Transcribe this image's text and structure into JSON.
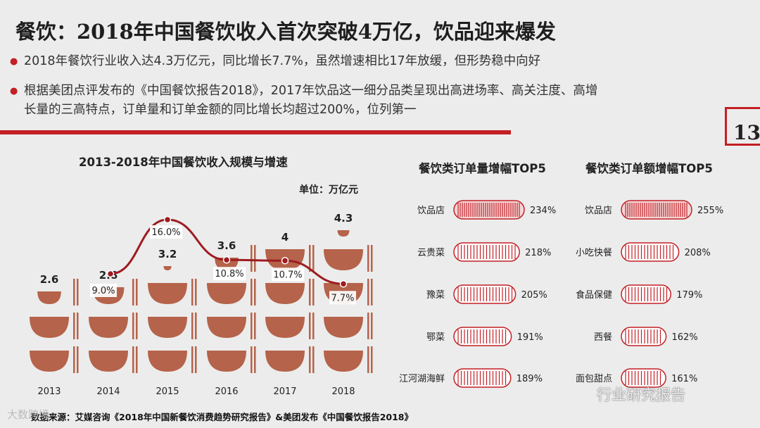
{
  "slide": {
    "title": "餐饮：2018年中国餐饮收入首次突破4万亿，饮品迎来爆发",
    "bullets": [
      "2018年餐饮行业收入达4.3万亿元，同比增长7.7%，虽然增速相比17年放缓，但形势稳中向好",
      "根据美团点评发布的《中国餐饮报告2018》，2017年饮品这一细分品类呈现出高进场率、高关注度、高增",
      "长量的三高特点，订单量和订单金额的同比增长均超过200%，位列第一"
    ],
    "page_number": "13",
    "unit_label": "单位：万亿元",
    "source": "数据来源：艾媒咨询《2018年中国新餐饮消费趋势研究报告》&美团发布《中国餐饮报告2018》",
    "watermark_left": "大数跨境",
    "watermark_right": "行业研究报告",
    "accent_color": "#c31f24",
    "bowl_color": "#b5634a"
  },
  "chart_data": [
    {
      "type": "bar",
      "title": "2013-2018年中国餐饮收入规模与增速",
      "categories": [
        "2013",
        "2014",
        "2015",
        "2016",
        "2017",
        "2018"
      ],
      "series": [
        {
          "values": [
            2.6,
            2.8,
            3.2,
            3.6,
            4,
            4.3
          ],
          "labels": [
            "2.6",
            "2.8",
            "3.2",
            "3.6",
            "4",
            "4.3"
          ]
        },
        {
          "type": "line",
          "values": [
            null,
            9.0,
            16.0,
            10.8,
            10.7,
            7.7
          ],
          "labels": [
            "",
            "9.0%",
            "16.0%",
            "10.8%",
            "10.7%",
            "7.7%"
          ]
        }
      ]
    },
    {
      "type": "bar",
      "title": "餐饮类订单量增幅TOP5",
      "categories": [
        "饮品店",
        "云贵菜",
        "豫菜",
        "鄂菜",
        "江河湖海鲜"
      ],
      "values": [
        234,
        218,
        205,
        191,
        189
      ],
      "labels": [
        "234%",
        "218%",
        "205%",
        "191%",
        "189%"
      ]
    },
    {
      "type": "bar",
      "title": "餐饮类订单额增幅TOP5",
      "categories": [
        "饮品店",
        "小吃快餐",
        "食品保健",
        "西餐",
        "面包甜点"
      ],
      "values": [
        255,
        208,
        179,
        162,
        161
      ],
      "labels": [
        "255%",
        "208%",
        "179%",
        "162%",
        "161%"
      ]
    }
  ]
}
